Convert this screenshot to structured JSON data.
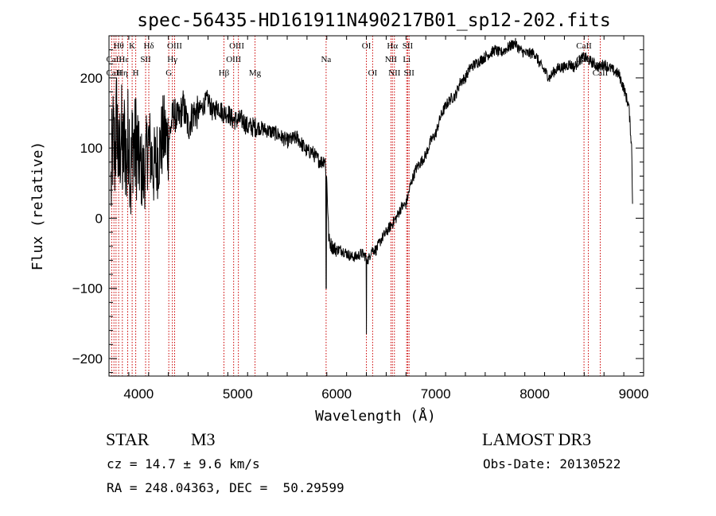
{
  "chart_data": {
    "type": "line",
    "title": "spec-56435-HD161911N490217B01_sp12-202.fits",
    "xlabel": "Wavelength (Å)",
    "ylabel": "Flux (relative)",
    "xlim": [
      3700,
      9100
    ],
    "ylim": [
      -225,
      260
    ],
    "x_ticks": [
      4000,
      5000,
      6000,
      7000,
      8000,
      9000
    ],
    "y_ticks": [
      -200,
      -100,
      0,
      100,
      200
    ],
    "grid": false,
    "line_color": "#000000",
    "marker_color": "#cc0000",
    "series": [
      {
        "x": [
          3720,
          3740,
          3760,
          3780,
          3800,
          3820,
          3840,
          3860,
          3880,
          3900,
          3920,
          3940,
          3960,
          3980,
          4000,
          4050,
          4100,
          4150,
          4200,
          4250,
          4300,
          4350,
          4400,
          4450,
          4500,
          4550,
          4600,
          4650,
          4700,
          4750,
          4800,
          4850,
          4900,
          4950,
          5000,
          5050,
          5100,
          5150,
          5200,
          5300,
          5400,
          5500,
          5600,
          5700,
          5750,
          5800,
          5850,
          5880,
          5900,
          5920,
          5950,
          6000,
          6050,
          6100,
          6150,
          6200,
          6250,
          6300,
          6320,
          6350,
          6400,
          6450,
          6500,
          6550,
          6600,
          6650,
          6700,
          6750,
          6800,
          6850,
          6900,
          6950,
          7000,
          7050,
          7100,
          7150,
          7200,
          7250,
          7300,
          7350,
          7400,
          7450,
          7500,
          7550,
          7600,
          7650,
          7700,
          7750,
          7800,
          7850,
          7900,
          7950,
          8000,
          8050,
          8100,
          8150,
          8200,
          8250,
          8300,
          8350,
          8400,
          8450,
          8500,
          8550,
          8600,
          8650,
          8700,
          8750,
          8800,
          8850,
          8900,
          8950,
          8980,
          8990
        ],
        "y": [
          40,
          110,
          90,
          150,
          60,
          130,
          80,
          120,
          70,
          140,
          50,
          120,
          90,
          110,
          80,
          60,
          110,
          70,
          90,
          120,
          110,
          150,
          140,
          160,
          130,
          150,
          150,
          160,
          170,
          150,
          160,
          150,
          150,
          140,
          140,
          140,
          130,
          130,
          130,
          125,
          120,
          110,
          115,
          95,
          95,
          85,
          80,
          85,
          55,
          -30,
          -40,
          -45,
          -45,
          -50,
          -55,
          -55,
          -50,
          -55,
          -60,
          -45,
          -45,
          -30,
          -20,
          -10,
          0,
          15,
          20,
          50,
          70,
          80,
          90,
          110,
          120,
          145,
          160,
          170,
          175,
          195,
          200,
          215,
          220,
          225,
          230,
          235,
          240,
          235,
          240,
          245,
          250,
          240,
          235,
          235,
          235,
          220,
          210,
          200,
          210,
          215,
          215,
          220,
          215,
          225,
          230,
          225,
          220,
          215,
          220,
          215,
          210,
          205,
          185,
          160,
          100,
          0
        ]
      }
    ],
    "annotations": [
      {
        "text": "Hθ",
        "x": 3798,
        "row": 0
      },
      {
        "text": "CaII",
        "x": 3750,
        "row": 1
      },
      {
        "text": "CaII",
        "x": 3750,
        "row": 2
      },
      {
        "text": "Hε",
        "x": 3850,
        "row": 1
      },
      {
        "text": "Hη",
        "x": 3835,
        "row": 2
      },
      {
        "text": "K",
        "x": 3934,
        "row": 0
      },
      {
        "text": "H",
        "x": 3970,
        "row": 2
      },
      {
        "text": "SII",
        "x": 4070,
        "row": 1
      },
      {
        "text": "Hδ",
        "x": 4102,
        "row": 0
      },
      {
        "text": "OIII",
        "x": 4363,
        "row": 0
      },
      {
        "text": "Hγ",
        "x": 4340,
        "row": 1
      },
      {
        "text": "G",
        "x": 4304,
        "row": 2
      },
      {
        "text": "Hβ",
        "x": 4861,
        "row": 2
      },
      {
        "text": "OIII",
        "x": 4990,
        "row": 0
      },
      {
        "text": "OIII",
        "x": 4959,
        "row": 1
      },
      {
        "text": "Mg",
        "x": 5175,
        "row": 2
      },
      {
        "text": "Na",
        "x": 5893,
        "row": 1
      },
      {
        "text": "OI",
        "x": 6300,
        "row": 0
      },
      {
        "text": "OI",
        "x": 6363,
        "row": 2
      },
      {
        "text": "Hα",
        "x": 6563,
        "row": 0
      },
      {
        "text": "SII",
        "x": 6717,
        "row": 0
      },
      {
        "text": "NII",
        "x": 6548,
        "row": 1
      },
      {
        "text": "Li",
        "x": 6707,
        "row": 1
      },
      {
        "text": "NII",
        "x": 6583,
        "row": 2
      },
      {
        "text": "SII",
        "x": 6731,
        "row": 2
      },
      {
        "text": "CaII",
        "x": 8498,
        "row": 0
      },
      {
        "text": "CaII",
        "x": 8498,
        "row": 1
      },
      {
        "text": "CaII",
        "x": 8662,
        "row": 2
      }
    ],
    "line_markers": [
      3727,
      3750,
      3771,
      3798,
      3835,
      3889,
      3934,
      3970,
      4070,
      4102,
      4304,
      4340,
      4363,
      4861,
      4959,
      5007,
      5175,
      5893,
      6300,
      6363,
      6548,
      6563,
      6583,
      6707,
      6717,
      6731,
      8498,
      8542,
      8662
    ]
  },
  "info": {
    "object_class": "STAR",
    "subclass": "M3",
    "survey": "LAMOST DR3",
    "redshift": "cz = 14.7 ± 9.6 km/s",
    "obs_date": "Obs-Date: 20130522",
    "coords": "RA = 248.04363, DEC =  50.29599"
  }
}
